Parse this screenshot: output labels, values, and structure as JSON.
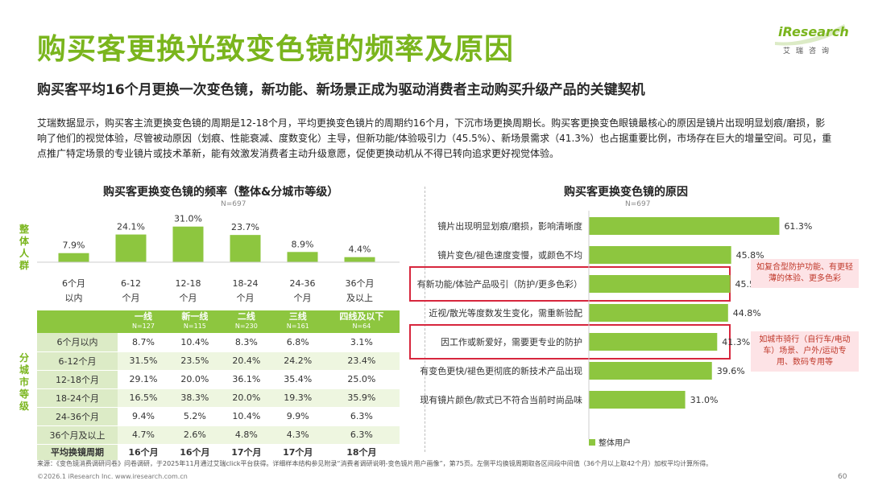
{
  "header": {
    "title": "购买客更换光致变色镜的频率及原因",
    "subtitle": "购买客平均16个月更换一次变色镜，新功能、新场景正成为驱动消费者主动购买升级产品的关键契机",
    "intro": "艾瑞数据显示，购买客主流更换变色镜的周期是12-18个月，平均更换变色镜片的周期约16个月，下沉市场更换周期长。购买客更换变色眼镜最核心的原因是镜片出现明显划痕/磨损，影响了他们的视觉体验，尽管被动原因（划痕、性能衰减、度数变化）主导，但新功能/体验吸引力（45.5%）、新场景需求（41.3%）也占据重要比例，市场存在巨大的增量空间。可见，重点推广特定场景的专业镜片或技术革新，能有效激发消费者主动升级意愿，促使更换动机从不得已转向追求更好视觉体验。"
  },
  "logo": {
    "brand": "iResearch",
    "sub": "艾瑞咨询"
  },
  "colors": {
    "green": "#7ab51d",
    "bar_green": "#8dc63f",
    "highlight_red": "#d7263d",
    "note_bg": "#fde3e6"
  },
  "side_labels": {
    "overall": "整体人群",
    "by_city": "分城市等级"
  },
  "chart_data": [
    {
      "type": "bar",
      "title": "购买客更换变色镜的频率（整体&分城市等级）",
      "n_label": "N=697",
      "categories": [
        "6个月以内",
        "6-12个月",
        "12-18个月",
        "18-24个月",
        "24-36个月",
        "36个月及以上"
      ],
      "category_lines": [
        [
          "6个月",
          "以内"
        ],
        [
          "6-12",
          "个月"
        ],
        [
          "12-18",
          "个月"
        ],
        [
          "18-24",
          "个月"
        ],
        [
          "24-36",
          "个月"
        ],
        [
          "36个月",
          "及以上"
        ]
      ],
      "values": [
        7.9,
        24.1,
        31.0,
        23.7,
        8.9,
        4.4
      ],
      "value_labels": [
        "7.9%",
        "24.1%",
        "31.0%",
        "23.7%",
        "8.9%",
        "4.4%"
      ],
      "unit": "%",
      "ylim": [
        0,
        35
      ]
    },
    {
      "type": "table",
      "columns": [
        {
          "name": "一线",
          "n": "N=127"
        },
        {
          "name": "新一线",
          "n": "N=115"
        },
        {
          "name": "二线",
          "n": "N=230"
        },
        {
          "name": "三线",
          "n": "N=161"
        },
        {
          "name": "四线及以下",
          "n": "N=64"
        }
      ],
      "rows": [
        {
          "label": "6个月以内",
          "values": [
            "8.7%",
            "10.4%",
            "8.3%",
            "6.8%",
            "3.1%"
          ]
        },
        {
          "label": "6-12个月",
          "values": [
            "31.5%",
            "23.5%",
            "20.4%",
            "24.2%",
            "23.4%"
          ]
        },
        {
          "label": "12-18个月",
          "values": [
            "29.1%",
            "20.0%",
            "36.1%",
            "35.4%",
            "25.0%"
          ]
        },
        {
          "label": "18-24个月",
          "values": [
            "16.5%",
            "38.3%",
            "20.0%",
            "19.3%",
            "35.9%"
          ]
        },
        {
          "label": "24-36个月",
          "values": [
            "9.4%",
            "5.2%",
            "10.4%",
            "9.9%",
            "6.3%"
          ]
        },
        {
          "label": "36个月及以上",
          "values": [
            "4.7%",
            "2.6%",
            "4.8%",
            "4.3%",
            "6.3%"
          ]
        }
      ],
      "avg_row": {
        "label": "平均换镜周期",
        "values": [
          "16个月",
          "16个月",
          "17个月",
          "17个月",
          "18个月"
        ]
      }
    },
    {
      "type": "bar",
      "orientation": "horizontal",
      "title": "购买客更换变色镜的原因",
      "n_label": "N=697",
      "categories": [
        "镜片出现明显划痕/磨损，影响清晰度",
        "镜片变色/褪色速度变慢，或颜色不均",
        "有新功能/体验产品吸引（防护/更多色彩）",
        "近视/散光等度数发生变化，需重新验配",
        "因工作或新爱好，需要更专业的防护",
        "有变色更快/褪色更彻底的新技术产品出现",
        "现有镜片颜色/款式已不符合当前时尚品味"
      ],
      "values": [
        61.3,
        45.8,
        45.5,
        44.8,
        41.3,
        39.6,
        31.0
      ],
      "value_labels": [
        "61.3%",
        "45.8%",
        "45.5%",
        "44.8%",
        "41.3%",
        "39.6%",
        "31.0%"
      ],
      "highlighted": [
        2,
        4
      ],
      "legend": "整体用户",
      "xlim": [
        0,
        70
      ]
    }
  ],
  "notes": {
    "note1": "如复合型防护功能、有更轻薄的体验、更多色彩",
    "note2": "如城市骑行（自行车/电动车）场景、户外/运动专用、数码专用等"
  },
  "footer": {
    "source": "来源：《变色镜消费调研问卷》问卷调研，于2025年11月通过艾瑞click平台获得。详细样本结构参见附录“消费者调研说明-变色镜片用户画像”，第75页。左侧平均换镜周期取各区间段中间值（36个月以上取42个月）加权平均计算所得。",
    "copyright": "©2026.1 iResearch Inc. www.iresearch.com.cn",
    "page": "60"
  }
}
